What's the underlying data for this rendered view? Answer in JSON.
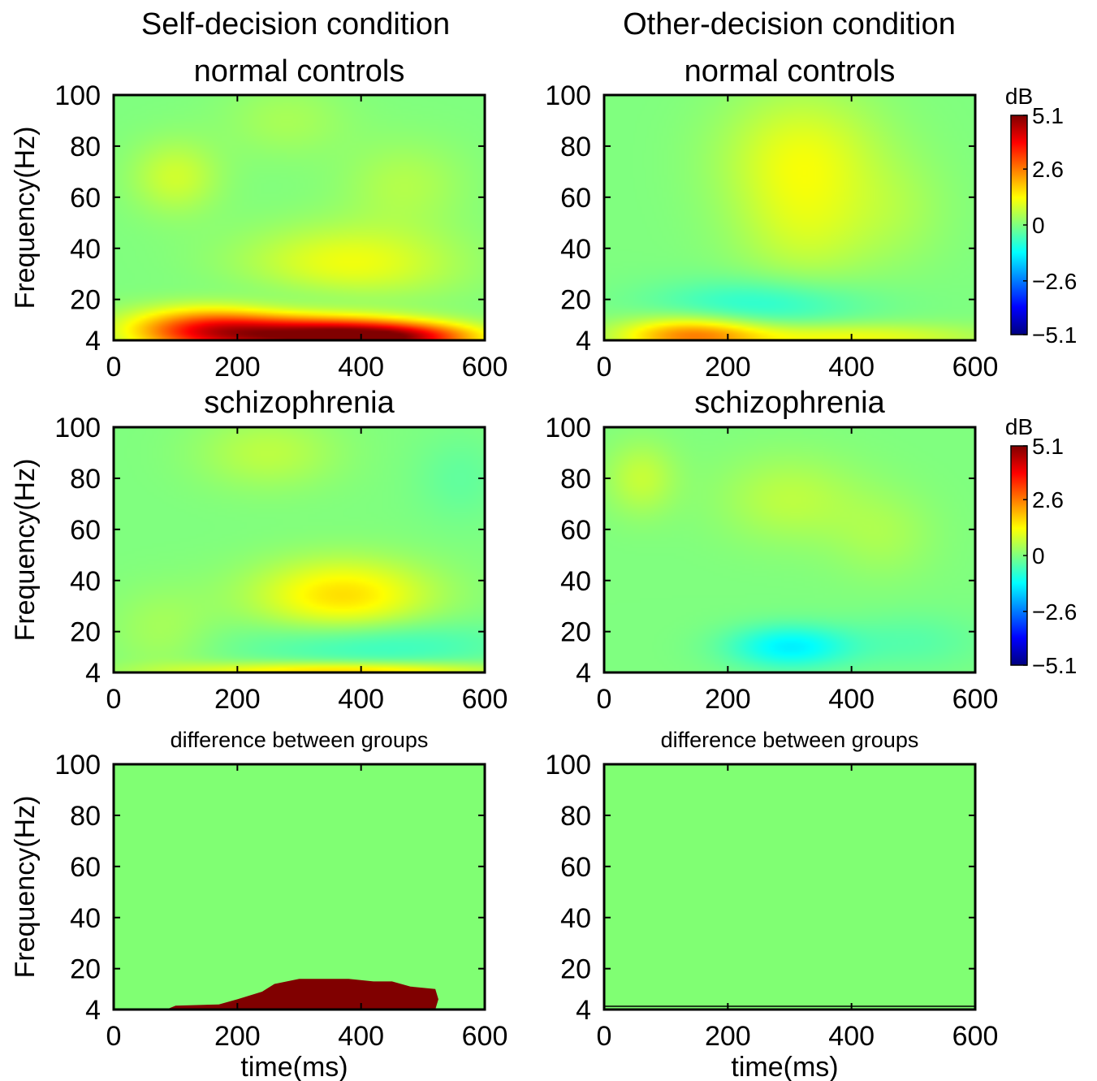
{
  "figure": {
    "column_titles": [
      "Self-decision condition",
      "Other-decision condition"
    ]
  },
  "chart_data": [
    {
      "type": "heatmap",
      "panel": "self-normal-controls",
      "title": "normal controls",
      "ylabel": "Frequency(Hz)",
      "xlabel": "",
      "xlim": [
        0,
        600
      ],
      "ylim": [
        4,
        100
      ],
      "xticks": [
        0,
        200,
        400,
        600
      ],
      "yticks": [
        4,
        20,
        40,
        60,
        80,
        100
      ],
      "color_range_db": [
        -5.1,
        5.1
      ],
      "features": [
        {
          "t": 150,
          "f": 8,
          "dt": 90,
          "df": 6,
          "value_db": 3.3
        },
        {
          "t": 330,
          "f": 6,
          "dt": 110,
          "df": 5,
          "value_db": 4.4
        },
        {
          "t": 470,
          "f": 5,
          "dt": 90,
          "df": 4,
          "value_db": 3.2
        },
        {
          "t": 380,
          "f": 33,
          "dt": 120,
          "df": 11,
          "value_db": 1.2
        },
        {
          "t": 100,
          "f": 68,
          "dt": 50,
          "df": 10,
          "value_db": 0.8
        },
        {
          "t": 470,
          "f": 65,
          "dt": 70,
          "df": 12,
          "value_db": 0.5
        },
        {
          "t": 280,
          "f": 90,
          "dt": 70,
          "df": 10,
          "value_db": 0.4
        },
        {
          "t": 330,
          "f": 20,
          "dt": 120,
          "df": 8,
          "value_db": -0.4
        }
      ]
    },
    {
      "type": "heatmap",
      "panel": "other-normal-controls",
      "title": "normal controls",
      "ylabel": "",
      "xlabel": "",
      "xlim": [
        0,
        600
      ],
      "ylim": [
        4,
        100
      ],
      "xticks": [
        0,
        200,
        400,
        600
      ],
      "yticks": [
        4,
        20,
        40,
        60,
        80,
        100
      ],
      "color_range_db": [
        -5.1,
        5.1
      ],
      "features": [
        {
          "t": 140,
          "f": 6,
          "dt": 80,
          "df": 5,
          "value_db": 2.3
        },
        {
          "t": 380,
          "f": 5,
          "dt": 160,
          "df": 4,
          "value_db": 1.2
        },
        {
          "t": 320,
          "f": 75,
          "dt": 90,
          "df": 18,
          "value_db": 1.1
        },
        {
          "t": 330,
          "f": 45,
          "dt": 80,
          "df": 15,
          "value_db": 0.6
        },
        {
          "t": 250,
          "f": 18,
          "dt": 120,
          "df": 7,
          "value_db": -0.9
        },
        {
          "t": 480,
          "f": 55,
          "dt": 60,
          "df": 15,
          "value_db": 0.3
        }
      ]
    },
    {
      "type": "heatmap",
      "panel": "self-schizophrenia",
      "title": "schizophrenia",
      "ylabel": "Frequency(Hz)",
      "xlabel": "",
      "xlim": [
        0,
        600
      ],
      "ylim": [
        4,
        100
      ],
      "xticks": [
        0,
        200,
        400,
        600
      ],
      "yticks": [
        4,
        20,
        40,
        60,
        80,
        100
      ],
      "color_range_db": [
        -5.1,
        5.1
      ],
      "features": [
        {
          "t": 370,
          "f": 4.5,
          "dt": 180,
          "df": 2.5,
          "value_db": 1.8
        },
        {
          "t": 370,
          "f": 34,
          "dt": 100,
          "df": 10,
          "value_db": 1.6
        },
        {
          "t": 420,
          "f": 15,
          "dt": 150,
          "df": 7,
          "value_db": -0.8
        },
        {
          "t": 250,
          "f": 90,
          "dt": 80,
          "df": 10,
          "value_db": 0.6
        },
        {
          "t": 80,
          "f": 20,
          "dt": 60,
          "df": 12,
          "value_db": 0.4
        },
        {
          "t": 560,
          "f": 80,
          "dt": 50,
          "df": 12,
          "value_db": -0.3
        }
      ]
    },
    {
      "type": "heatmap",
      "panel": "other-schizophrenia",
      "title": "schizophrenia",
      "ylabel": "",
      "xlabel": "",
      "xlim": [
        0,
        600
      ],
      "ylim": [
        4,
        100
      ],
      "xticks": [
        0,
        200,
        400,
        600
      ],
      "yticks": [
        4,
        20,
        40,
        60,
        80,
        100
      ],
      "color_range_db": [
        -5.1,
        5.1
      ],
      "features": [
        {
          "t": 300,
          "f": 14,
          "dt": 70,
          "df": 6,
          "value_db": -1.4
        },
        {
          "t": 60,
          "f": 80,
          "dt": 40,
          "df": 10,
          "value_db": 0.7
        },
        {
          "t": 300,
          "f": 72,
          "dt": 80,
          "df": 12,
          "value_db": 0.6
        },
        {
          "t": 450,
          "f": 58,
          "dt": 60,
          "df": 12,
          "value_db": 0.4
        },
        {
          "t": 500,
          "f": 16,
          "dt": 80,
          "df": 8,
          "value_db": -0.4
        }
      ]
    },
    {
      "type": "heatmap",
      "panel": "self-difference",
      "title": "difference between groups",
      "ylabel": "Frequency(Hz)",
      "xlabel": "time(ms)",
      "xlim": [
        0,
        600
      ],
      "ylim": [
        4,
        100
      ],
      "xticks": [
        0,
        200,
        400,
        600
      ],
      "yticks": [
        4,
        20,
        40,
        60,
        80,
        100
      ],
      "background_color": "#80ff73",
      "region_color": "#800000",
      "significant_region_upper_hz": [
        [
          85,
          4
        ],
        [
          100,
          5.5
        ],
        [
          170,
          6
        ],
        [
          200,
          8
        ],
        [
          240,
          11
        ],
        [
          260,
          14
        ],
        [
          300,
          16
        ],
        [
          380,
          16
        ],
        [
          420,
          15
        ],
        [
          450,
          15
        ],
        [
          480,
          13
        ],
        [
          520,
          12
        ],
        [
          525,
          8
        ],
        [
          520,
          4
        ]
      ]
    },
    {
      "type": "heatmap",
      "panel": "other-difference",
      "title": "difference between groups",
      "ylabel": "",
      "xlabel": "time(ms)",
      "xlim": [
        0,
        600
      ],
      "ylim": [
        4,
        100
      ],
      "xticks": [
        0,
        200,
        400,
        600
      ],
      "yticks": [
        4,
        20,
        40,
        60,
        80,
        100
      ],
      "background_color": "#80ff73",
      "region_color": "#800000",
      "significant_region_upper_hz": []
    }
  ],
  "colorbars": [
    {
      "unit": "dB",
      "labels": [
        "5.1",
        "2.6",
        "0",
        "−2.6",
        "−5.1"
      ],
      "values": [
        5.1,
        2.6,
        0,
        -2.6,
        -5.1
      ]
    },
    {
      "unit": "dB",
      "labels": [
        "5.1",
        "2.6",
        "0",
        "−2.6",
        "−5.1"
      ],
      "values": [
        5.1,
        2.6,
        0,
        -2.6,
        -5.1
      ]
    }
  ],
  "colormap": "jet"
}
